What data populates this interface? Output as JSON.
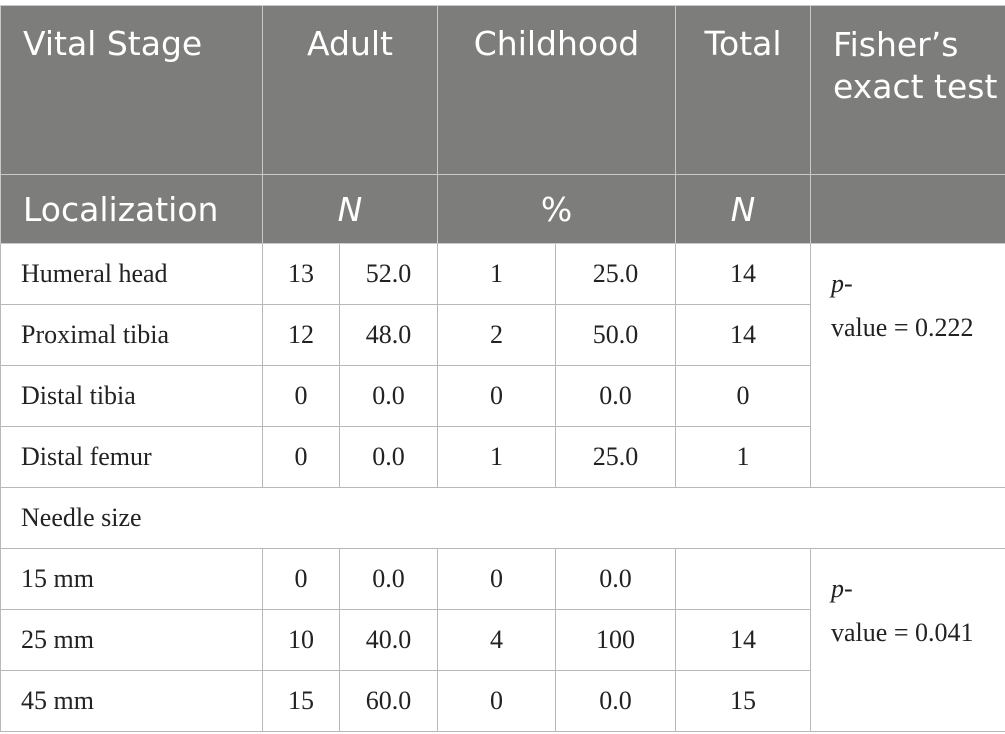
{
  "header": {
    "row1": {
      "vital_stage": "Vital Stage",
      "adult": "Adult",
      "childhood": "Childhood",
      "total": "Total",
      "fisher": "Fisher’s exact test"
    },
    "row2": {
      "localization": "Localization",
      "n": "N",
      "pct": "%",
      "total_n": "N"
    }
  },
  "localization_rows": [
    {
      "label": "Humeral head",
      "adult_n": "13",
      "adult_pct": "52.0",
      "child_n": "1",
      "child_pct": "25.0",
      "total": "14"
    },
    {
      "label": "Proximal tibia",
      "adult_n": "12",
      "adult_pct": "48.0",
      "child_n": "2",
      "child_pct": "50.0",
      "total": "14"
    },
    {
      "label": "Distal tibia",
      "adult_n": "0",
      "adult_pct": "0.0",
      "child_n": "0",
      "child_pct": "0.0",
      "total": "0"
    },
    {
      "label": "Distal femur",
      "adult_n": "0",
      "adult_pct": "0.0",
      "child_n": "1",
      "child_pct": "25.0",
      "total": "1"
    }
  ],
  "localization_pvalue": {
    "p": "p",
    "dash": "-",
    "value": "value = 0.222"
  },
  "needle_section_label": "Needle size",
  "needle_rows": [
    {
      "label": "15 mm",
      "adult_n": "0",
      "adult_pct": "0.0",
      "child_n": "0",
      "child_pct": "0.0",
      "total": ""
    },
    {
      "label": "25 mm",
      "adult_n": "10",
      "adult_pct": "40.0",
      "child_n": "4",
      "child_pct": "100",
      "total": "14"
    },
    {
      "label": "45 mm",
      "adult_n": "15",
      "adult_pct": "60.0",
      "child_n": "0",
      "child_pct": "0.0",
      "total": "15"
    }
  ],
  "needle_pvalue": {
    "p": "p",
    "dash": "-",
    "value": "value = 0.041"
  }
}
